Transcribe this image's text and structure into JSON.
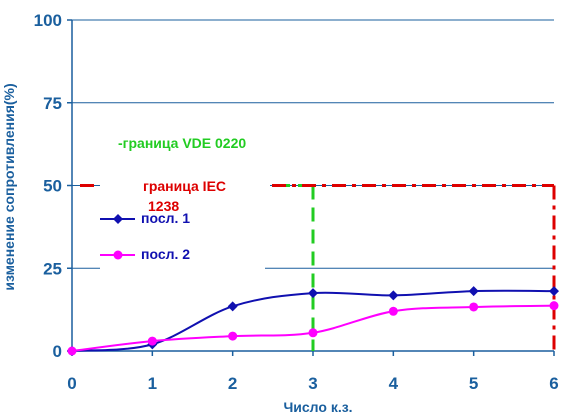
{
  "chart_data": {
    "type": "line",
    "xlabel": "Число к.з.",
    "ylabel": "изменение сопротивления(%)",
    "xlim": [
      0,
      6
    ],
    "ylim": [
      0,
      100
    ],
    "x_ticks": [
      0,
      1,
      2,
      3,
      4,
      5,
      6
    ],
    "y_ticks": [
      0,
      25,
      50,
      75,
      100
    ],
    "grid": "horizontal",
    "series": [
      {
        "name": "посл. 1",
        "color": "#1010b0",
        "marker": "diamond",
        "x": [
          0,
          1,
          2,
          3,
          4,
          5,
          6
        ],
        "y": [
          0,
          2,
          13.5,
          17.5,
          16.8,
          18.1,
          18.1
        ]
      },
      {
        "name": "посл. 2",
        "color": "#ff00ff",
        "marker": "circle",
        "x": [
          0,
          1,
          2,
          3,
          4,
          5,
          6
        ],
        "y": [
          0,
          3,
          4.5,
          5.5,
          12,
          13.3,
          13.7
        ]
      }
    ],
    "annotations": [
      {
        "label": "-граница VDE 0220",
        "color": "#22cc22",
        "style": "dashed",
        "x": 3,
        "y": 50
      },
      {
        "label": "граница IEC 1238",
        "label_lines": [
          "граница IEC",
          "1238"
        ],
        "color": "#dd0000",
        "style": "dash-dot",
        "x": 6,
        "y": 50
      }
    ]
  }
}
